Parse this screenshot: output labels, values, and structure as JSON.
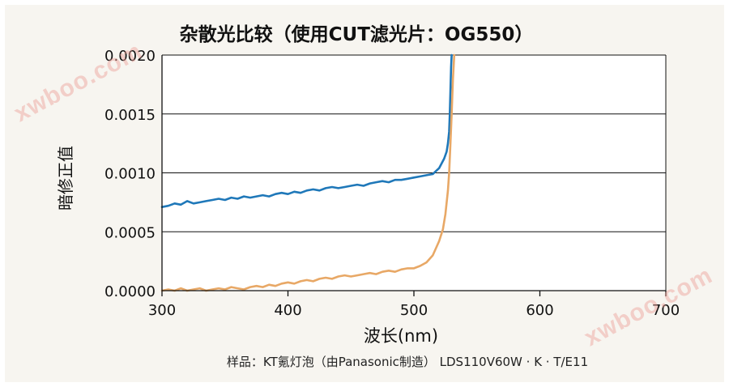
{
  "watermark": "xwboo.com",
  "chart_data": {
    "type": "line",
    "title": "杂散光比较（使用CUT滤光片：OG550）",
    "xlabel": "波长(nm)",
    "ylabel": "暗修正值",
    "caption": "样品：KT氪灯泡（由Panasonic制造） LDS110V60W · K · T/E11",
    "xlim": [
      300,
      700
    ],
    "ylim": [
      0,
      0.002
    ],
    "xticks": [
      300,
      400,
      500,
      600,
      700
    ],
    "xtick_labels": [
      "300",
      "400",
      "500",
      "600",
      "700"
    ],
    "yticks": [
      0,
      0.0005,
      0.001,
      0.0015,
      0.002
    ],
    "ytick_labels": [
      "0.0000",
      "0.0005",
      "0.0010",
      "0.0015",
      "0.0020"
    ],
    "grid": "horizontal",
    "series": [
      {
        "name": "blue",
        "color": "#1f78b9",
        "points": [
          [
            300,
            0.00071
          ],
          [
            305,
            0.00072
          ],
          [
            310,
            0.00074
          ],
          [
            315,
            0.00073
          ],
          [
            320,
            0.00076
          ],
          [
            325,
            0.00074
          ],
          [
            330,
            0.00075
          ],
          [
            335,
            0.00076
          ],
          [
            340,
            0.00077
          ],
          [
            345,
            0.00078
          ],
          [
            350,
            0.00077
          ],
          [
            355,
            0.00079
          ],
          [
            360,
            0.00078
          ],
          [
            365,
            0.0008
          ],
          [
            370,
            0.00079
          ],
          [
            375,
            0.0008
          ],
          [
            380,
            0.00081
          ],
          [
            385,
            0.0008
          ],
          [
            390,
            0.00082
          ],
          [
            395,
            0.00083
          ],
          [
            400,
            0.00082
          ],
          [
            405,
            0.00084
          ],
          [
            410,
            0.00083
          ],
          [
            415,
            0.00085
          ],
          [
            420,
            0.00086
          ],
          [
            425,
            0.00085
          ],
          [
            430,
            0.00087
          ],
          [
            435,
            0.00088
          ],
          [
            440,
            0.00087
          ],
          [
            445,
            0.00088
          ],
          [
            450,
            0.00089
          ],
          [
            455,
            0.0009
          ],
          [
            460,
            0.00089
          ],
          [
            465,
            0.00091
          ],
          [
            470,
            0.00092
          ],
          [
            475,
            0.00093
          ],
          [
            480,
            0.00092
          ],
          [
            485,
            0.00094
          ],
          [
            490,
            0.00094
          ],
          [
            495,
            0.00095
          ],
          [
            500,
            0.00096
          ],
          [
            505,
            0.00097
          ],
          [
            510,
            0.00098
          ],
          [
            515,
            0.00099
          ],
          [
            518,
            0.00102
          ],
          [
            520,
            0.00104
          ],
          [
            522,
            0.00108
          ],
          [
            524,
            0.00112
          ],
          [
            526,
            0.00118
          ],
          [
            527,
            0.00125
          ],
          [
            528,
            0.00135
          ],
          [
            528.5,
            0.0015
          ],
          [
            529,
            0.0017
          ],
          [
            529.5,
            0.0019
          ],
          [
            530,
            0.002
          ]
        ]
      },
      {
        "name": "orange",
        "color": "#e8a866",
        "points": [
          [
            300,
            0.0
          ],
          [
            305,
            1e-05
          ],
          [
            310,
            0.0
          ],
          [
            315,
            2e-05
          ],
          [
            320,
            0.0
          ],
          [
            325,
            1e-05
          ],
          [
            330,
            2e-05
          ],
          [
            335,
            0.0
          ],
          [
            340,
            1e-05
          ],
          [
            345,
            2e-05
          ],
          [
            350,
            1e-05
          ],
          [
            355,
            3e-05
          ],
          [
            360,
            2e-05
          ],
          [
            365,
            1e-05
          ],
          [
            370,
            3e-05
          ],
          [
            375,
            4e-05
          ],
          [
            380,
            3e-05
          ],
          [
            385,
            5e-05
          ],
          [
            390,
            4e-05
          ],
          [
            395,
            6e-05
          ],
          [
            400,
            7e-05
          ],
          [
            405,
            6e-05
          ],
          [
            410,
            8e-05
          ],
          [
            415,
            9e-05
          ],
          [
            420,
            8e-05
          ],
          [
            425,
            0.0001
          ],
          [
            430,
            0.00011
          ],
          [
            435,
            0.0001
          ],
          [
            440,
            0.00012
          ],
          [
            445,
            0.00013
          ],
          [
            450,
            0.00012
          ],
          [
            455,
            0.00013
          ],
          [
            460,
            0.00014
          ],
          [
            465,
            0.00015
          ],
          [
            470,
            0.00014
          ],
          [
            475,
            0.00016
          ],
          [
            480,
            0.00017
          ],
          [
            485,
            0.00016
          ],
          [
            490,
            0.00018
          ],
          [
            495,
            0.00019
          ],
          [
            500,
            0.00019
          ],
          [
            505,
            0.00021
          ],
          [
            510,
            0.00024
          ],
          [
            515,
            0.0003
          ],
          [
            520,
            0.00042
          ],
          [
            523,
            0.00052
          ],
          [
            525,
            0.00065
          ],
          [
            527,
            0.00085
          ],
          [
            528,
            0.001
          ],
          [
            529,
            0.00125
          ],
          [
            530,
            0.0015
          ],
          [
            531,
            0.0018
          ],
          [
            532,
            0.002
          ]
        ]
      }
    ]
  }
}
